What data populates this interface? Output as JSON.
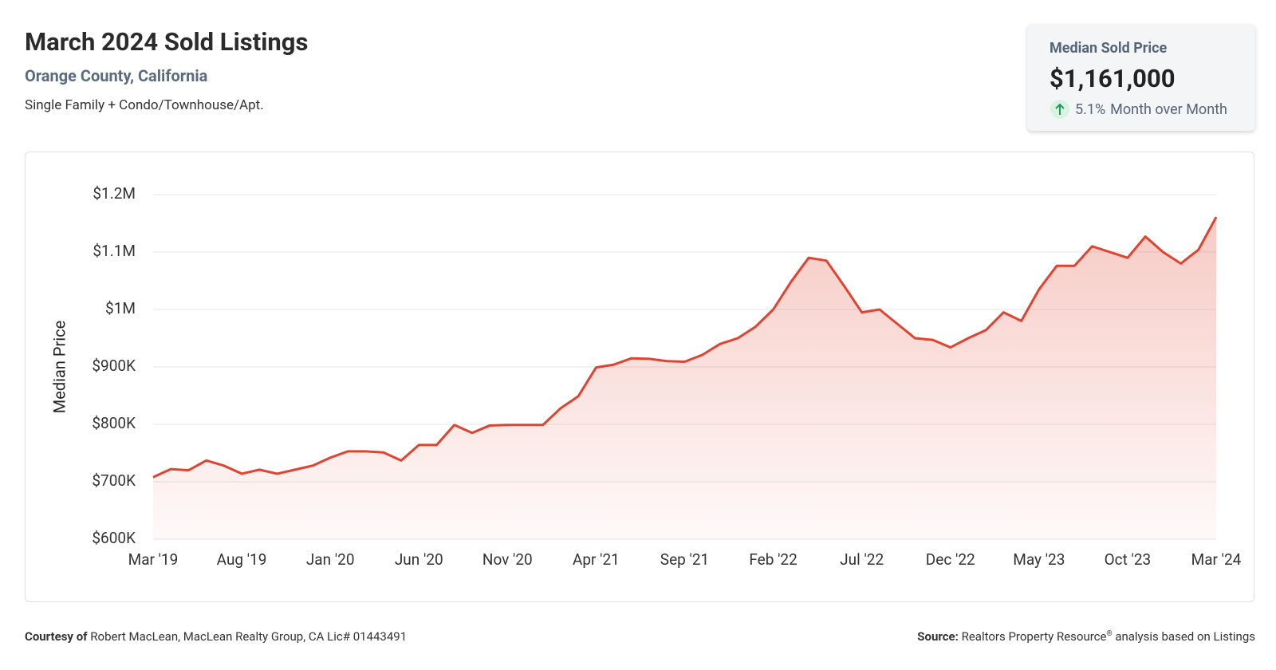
{
  "header": {
    "title": "March 2024 Sold Listings",
    "location": "Orange County, California",
    "property_types": "Single Family + Condo/Townhouse/Apt."
  },
  "kpi": {
    "label": "Median Sold Price",
    "value": "$1,161,000",
    "change": "5.1%",
    "change_period": "Month over Month"
  },
  "chart_data": {
    "type": "line",
    "y_label": "Median Price",
    "color": "#e0432f",
    "grid": true,
    "categories": [
      "Mar '19",
      null,
      null,
      null,
      null,
      "Aug '19",
      null,
      null,
      null,
      null,
      "Jan '20",
      null,
      null,
      null,
      null,
      "Jun '20",
      null,
      null,
      null,
      null,
      "Nov '20",
      null,
      null,
      null,
      null,
      "Apr '21",
      null,
      null,
      null,
      null,
      "Sep '21",
      null,
      null,
      null,
      null,
      "Feb '22",
      null,
      null,
      null,
      null,
      "Jul '22",
      null,
      null,
      null,
      null,
      "Dec '22",
      null,
      null,
      null,
      null,
      "May '23",
      null,
      null,
      null,
      null,
      "Oct '23",
      null,
      null,
      null,
      null,
      "Mar '24"
    ],
    "values": [
      708000,
      722000,
      720000,
      737000,
      728000,
      714000,
      721000,
      714000,
      721000,
      728000,
      742000,
      753000,
      753000,
      751000,
      737000,
      764000,
      764000,
      799000,
      785000,
      798000,
      799000,
      799000,
      799000,
      828000,
      849000,
      899000,
      904000,
      915000,
      914000,
      910000,
      909000,
      921000,
      940000,
      950000,
      970000,
      1000000,
      1048000,
      1090000,
      1085000,
      1041000,
      995000,
      1000000,
      975000,
      950000,
      947000,
      934000,
      950000,
      964000,
      995000,
      980000,
      1035000,
      1076000,
      1076000,
      1110000,
      1100000,
      1090000,
      1127000,
      1100000,
      1080000,
      1104000,
      1161000
    ],
    "ylim": [
      600000,
      1200000
    ],
    "yticks": [
      {
        "value": 600000,
        "label": "$600K"
      },
      {
        "value": 700000,
        "label": "$700K"
      },
      {
        "value": 800000,
        "label": "$800K"
      },
      {
        "value": 900000,
        "label": "$900K"
      },
      {
        "value": 1000000,
        "label": "$1M"
      },
      {
        "value": 1100000,
        "label": "$1.1M"
      },
      {
        "value": 1200000,
        "label": "$1.2M"
      }
    ]
  },
  "footer": {
    "courtesy_label": "Courtesy of",
    "courtesy_text": "Robert MacLean, MacLean Realty Group, CA Lic# 01443491",
    "source_label": "Source:",
    "source_name": "Realtors Property Resource",
    "source_mark": "®",
    "source_rest": "analysis based on Listings"
  }
}
